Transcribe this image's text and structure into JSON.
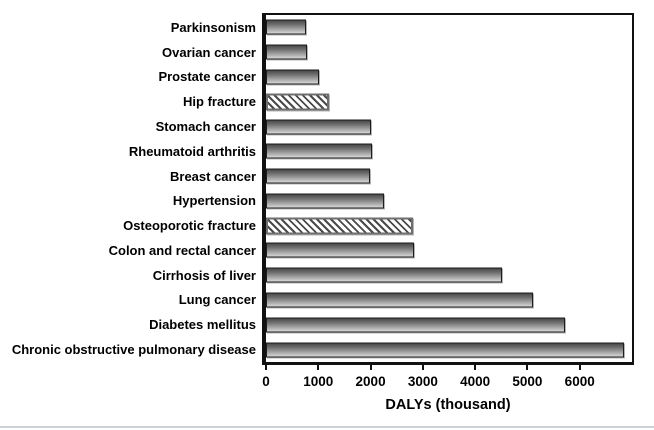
{
  "chart_data": {
    "type": "bar",
    "orientation": "horizontal",
    "title": "",
    "xlabel": "DALYs (thousand)",
    "ylabel": "",
    "xlim": [
      0,
      7000
    ],
    "xticks": [
      0,
      1000,
      2000,
      3000,
      4000,
      5000,
      6000
    ],
    "grid": false,
    "legend": "none",
    "categories": [
      "Parkinsonism",
      "Ovarian cancer",
      "Prostate cancer",
      "Hip fracture",
      "Stomach cancer",
      "Rheumatoid arthritis",
      "Breast cancer",
      "Hypertension",
      "Osteoporotic fracture",
      "Colon and rectal cancer",
      "Cirrhosis of liver",
      "Lung cancer",
      "Diabetes mellitus",
      "Chronic obstructive pulmonary disease"
    ],
    "values": [
      760,
      790,
      1020,
      1210,
      2000,
      2020,
      1990,
      2260,
      2820,
      2840,
      4520,
      5100,
      5710,
      6850
    ],
    "hatched": [
      false,
      false,
      false,
      true,
      false,
      false,
      false,
      false,
      true,
      false,
      false,
      false,
      false,
      false
    ],
    "bar_style_note": "gray vertical-gradient bars; hip fracture and osteoporotic fracture shown as white bars with diagonal hatching",
    "colors": {
      "bar_gradient_top": "#484848",
      "bar_gradient_bottom": "#d9d9d9",
      "bar_border": "#1c1c1c",
      "hatch_line": "#4a4a4a",
      "hatch_border": "#6e6e6e",
      "axis": "#111111",
      "background": "#ffffff"
    }
  }
}
